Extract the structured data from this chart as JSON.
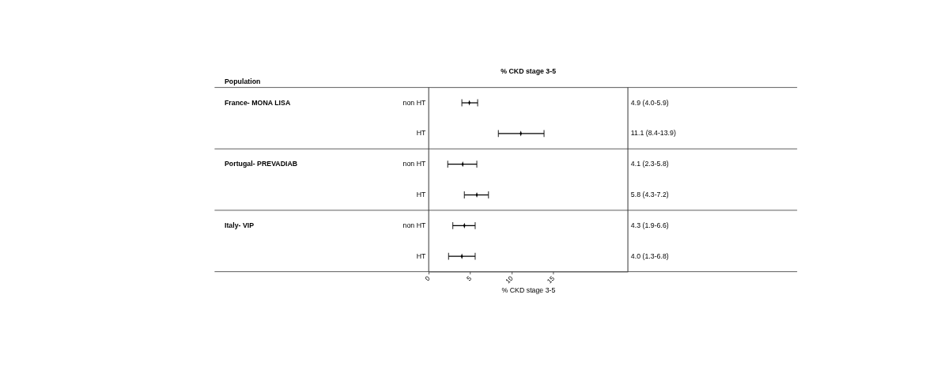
{
  "chart_data": {
    "type": "scatter",
    "orientation": "horizontal",
    "title": "% CKD stage 3-5",
    "xlabel": "% CKD stage 3-5",
    "categories": [
      "non HT",
      "HT",
      "non HT",
      "HT",
      "non HT",
      "HT"
    ],
    "color": "#000000",
    "values": [
      4.9,
      11.1,
      4.1,
      5.8,
      4.3,
      4.0
    ],
    "errors": [
      [
        4.0,
        5.9
      ],
      [
        8.4,
        13.9
      ],
      [
        2.3,
        5.8
      ],
      [
        4.3,
        7.2
      ],
      [
        2.9,
        5.6
      ],
      [
        2.4,
        5.6
      ]
    ],
    "marker": "diamond",
    "xlim": [
      0,
      24
    ],
    "xticks": [
      0,
      5,
      10,
      15
    ],
    "grid": false,
    "annotations": [
      "Population",
      "France- MONA LISA",
      "Portugal- PREVADIAB",
      "Italy- VIP",
      "4.9 (4.0-5.9)",
      "11.1 (8.4-13.9)",
      "4.1 (2.3-5.8)",
      "5.8 (4.3-7.2)",
      "4.3 (1.9-6.6)",
      "4.0 (1.3-6.8)"
    ]
  }
}
